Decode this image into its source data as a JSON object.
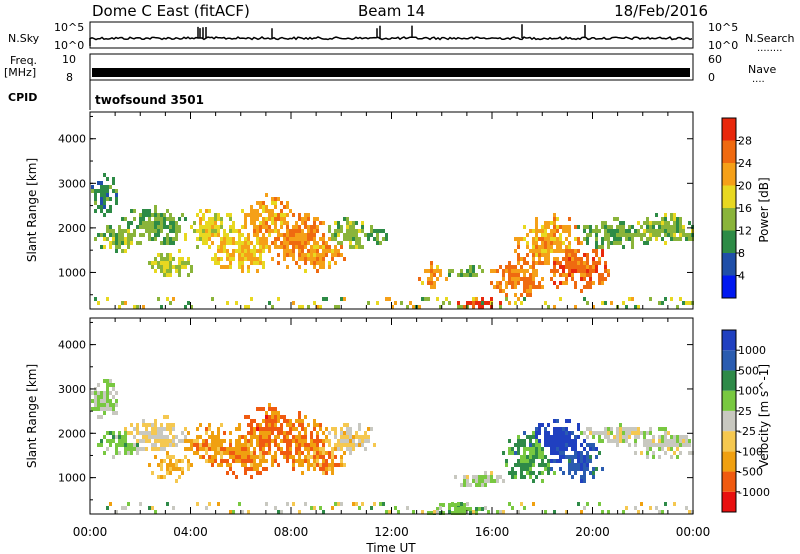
{
  "header": {
    "title": "Dome C East (fitACF)",
    "beam": "Beam 14",
    "date": "18/Feb/2016"
  },
  "side_labels": {
    "nsky": "N.Sky",
    "nsearch": "N.Search",
    "freq": "Freq.",
    "freq_unit": "[MHz]",
    "nave": "Nave",
    "cpid": "CPID",
    "dotted": "........",
    "dotted_short": "...."
  },
  "cpid_text": "twofsound 3501",
  "noise_axis": {
    "left_top": "10^5",
    "left_bottom": "10^0",
    "right_top": "10^5",
    "right_bottom": "10^0"
  },
  "freq_axis": {
    "left_top": "10",
    "left_bottom": "8",
    "right_top": "60",
    "right_bottom": "0"
  },
  "x_ticks": [
    "00:00",
    "04:00",
    "08:00",
    "12:00",
    "16:00",
    "20:00",
    "00:00"
  ],
  "x_label": "Time UT",
  "y_label": "Slant Range [km]",
  "y_ticks": [
    "1000",
    "2000",
    "3000",
    "4000"
  ],
  "power_colorbar": {
    "label": "Power [dB]",
    "colors": [
      "#0018f0",
      "#1f4fa8",
      "#2d8b46",
      "#8ab43a",
      "#e8d820",
      "#f5a018",
      "#ef6a10",
      "#e8280c"
    ],
    "ticks": [
      "4",
      "8",
      "12",
      "16",
      "20",
      "24",
      "28"
    ]
  },
  "velocity_colorbar": {
    "label": "Velocity [m s^-1]",
    "colors": [
      "#e81010",
      "#f05a10",
      "#f0a010",
      "#f5c850",
      "#c8c8c0",
      "#78c840",
      "#2e8a48",
      "#2a5cb0",
      "#2040c0"
    ],
    "ticks": [
      "-1000",
      "-500",
      "-100",
      "-25",
      "25",
      "100",
      "500",
      "1000"
    ]
  },
  "chart_data": [
    {
      "type": "heatmap",
      "title": "Power",
      "x_range_hours": [
        0,
        24
      ],
      "ylim": [
        180,
        4600
      ],
      "color_range": [
        0,
        32
      ],
      "blobs": [
        {
          "t": 0.5,
          "r": 2800,
          "dt": 0.6,
          "dr": 400,
          "v": 10
        },
        {
          "t": 1.2,
          "r": 1800,
          "dt": 0.9,
          "dr": 300,
          "v": 14
        },
        {
          "t": 2.5,
          "r": 2100,
          "dt": 1.2,
          "dr": 400,
          "v": 12
        },
        {
          "t": 3.2,
          "r": 1200,
          "dt": 0.8,
          "dr": 300,
          "v": 16
        },
        {
          "t": 4.8,
          "r": 2000,
          "dt": 1.0,
          "dr": 400,
          "v": 18
        },
        {
          "t": 6.0,
          "r": 1600,
          "dt": 1.2,
          "dr": 500,
          "v": 20
        },
        {
          "t": 7.0,
          "r": 2200,
          "dt": 1.0,
          "dr": 500,
          "v": 22
        },
        {
          "t": 8.2,
          "r": 1800,
          "dt": 1.2,
          "dr": 600,
          "v": 24
        },
        {
          "t": 9.0,
          "r": 1500,
          "dt": 1.0,
          "dr": 400,
          "v": 22
        },
        {
          "t": 10.3,
          "r": 1900,
          "dt": 1.0,
          "dr": 300,
          "v": 14
        },
        {
          "t": 11.2,
          "r": 1900,
          "dt": 0.6,
          "dr": 200,
          "v": 12
        },
        {
          "t": 13.6,
          "r": 1000,
          "dt": 0.5,
          "dr": 250,
          "v": 22
        },
        {
          "t": 15.0,
          "r": 1050,
          "dt": 0.8,
          "dr": 120,
          "v": 12
        },
        {
          "t": 15.3,
          "r": 330,
          "dt": 0.9,
          "dr": 130,
          "v": 29
        },
        {
          "t": 17.0,
          "r": 900,
          "dt": 1.0,
          "dr": 400,
          "v": 24
        },
        {
          "t": 18.2,
          "r": 1700,
          "dt": 1.2,
          "dr": 600,
          "v": 22
        },
        {
          "t": 19.3,
          "r": 1200,
          "dt": 1.2,
          "dr": 500,
          "v": 26
        },
        {
          "t": 20.8,
          "r": 1900,
          "dt": 1.5,
          "dr": 300,
          "v": 12
        },
        {
          "t": 22.8,
          "r": 2000,
          "dt": 1.2,
          "dr": 300,
          "v": 14
        }
      ]
    },
    {
      "type": "heatmap",
      "title": "Velocity",
      "x_range_hours": [
        0,
        24
      ],
      "ylim": [
        180,
        4600
      ],
      "color_range": [
        -1000,
        1000
      ],
      "blobs": [
        {
          "t": 0.5,
          "r": 2800,
          "dt": 0.6,
          "dr": 400,
          "v": 150
        },
        {
          "t": 1.2,
          "r": 1800,
          "dt": 0.9,
          "dr": 300,
          "v": 200
        },
        {
          "t": 2.5,
          "r": 2000,
          "dt": 1.2,
          "dr": 400,
          "v": -150
        },
        {
          "t": 3.2,
          "r": 1300,
          "dt": 0.8,
          "dr": 300,
          "v": -300
        },
        {
          "t": 4.8,
          "r": 1800,
          "dt": 1.0,
          "dr": 400,
          "v": -450
        },
        {
          "t": 6.0,
          "r": 1600,
          "dt": 1.2,
          "dr": 500,
          "v": -500
        },
        {
          "t": 7.0,
          "r": 2100,
          "dt": 1.0,
          "dr": 500,
          "v": -600
        },
        {
          "t": 8.2,
          "r": 1800,
          "dt": 1.2,
          "dr": 600,
          "v": -550
        },
        {
          "t": 9.0,
          "r": 1500,
          "dt": 1.0,
          "dr": 400,
          "v": -450
        },
        {
          "t": 10.3,
          "r": 1900,
          "dt": 1.0,
          "dr": 300,
          "v": -200
        },
        {
          "t": 14.5,
          "r": 300,
          "dt": 1.0,
          "dr": 150,
          "v": 300
        },
        {
          "t": 15.5,
          "r": 1000,
          "dt": 1.0,
          "dr": 150,
          "v": 10
        },
        {
          "t": 17.5,
          "r": 1500,
          "dt": 1.0,
          "dr": 500,
          "v": 400
        },
        {
          "t": 18.6,
          "r": 1800,
          "dt": 1.0,
          "dr": 500,
          "v": 900
        },
        {
          "t": 19.5,
          "r": 1400,
          "dt": 0.8,
          "dr": 400,
          "v": 700
        },
        {
          "t": 21.0,
          "r": 2000,
          "dt": 1.5,
          "dr": 200,
          "v": 10
        },
        {
          "t": 22.8,
          "r": 1800,
          "dt": 1.2,
          "dr": 300,
          "v": 15
        }
      ]
    }
  ]
}
